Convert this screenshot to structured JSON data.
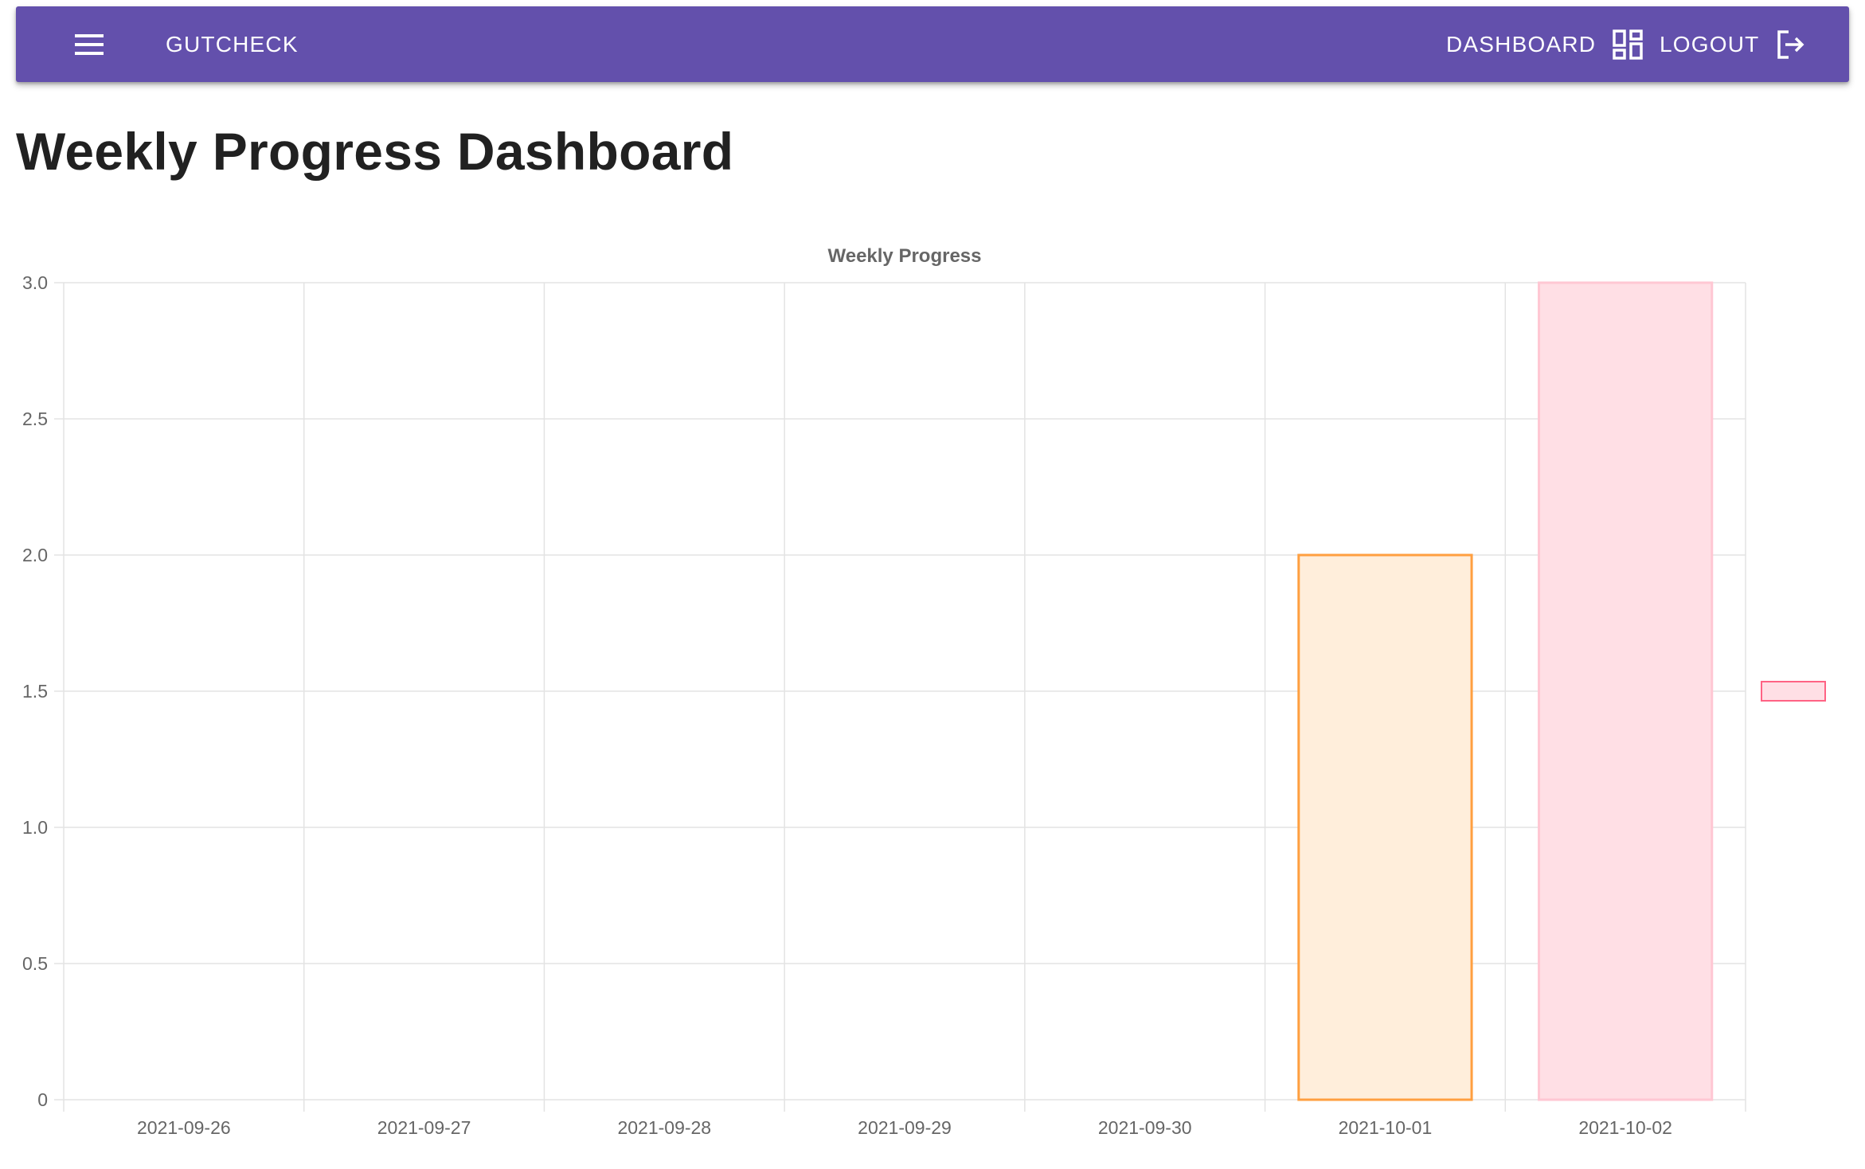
{
  "app": {
    "brand": "GUTCHECK",
    "nav": {
      "dashboard_label": "DASHBOARD",
      "logout_label": "LOGOUT"
    },
    "icons": {
      "menu": "menu-icon",
      "dashboard": "dashboard-icon",
      "logout": "logout-icon"
    },
    "colors": {
      "app_bar": "#6350ac"
    }
  },
  "page": {
    "title": "Weekly Progress Dashboard"
  },
  "chart_data": {
    "type": "bar",
    "title": "Weekly Progress",
    "categories": [
      "2021-09-26",
      "2021-09-27",
      "2021-09-28",
      "2021-09-29",
      "2021-09-30",
      "2021-10-01",
      "2021-10-02"
    ],
    "values": [
      0,
      0,
      0,
      0,
      0,
      2,
      3
    ],
    "bar_fill_colors": [
      "#ffeedb",
      "#ffeedb",
      "#ffeedb",
      "#ffeedb",
      "#ffeedb",
      "#ffeedb",
      "#ffdfe5"
    ],
    "bar_border_colors": [
      "#ff9f40",
      "#ff9f40",
      "#ff9f40",
      "#ff9f40",
      "#ff9f40",
      "#ff9f40",
      "#ffc7d3"
    ],
    "legend_swatch": {
      "fill": "#ffdfe5",
      "border": "#ff6384"
    },
    "ylim": [
      0,
      3
    ],
    "yticks": [
      "0",
      "0.5",
      "1.0",
      "1.5",
      "2.0",
      "2.5",
      "3.0"
    ],
    "grid": true,
    "legend_position": "right",
    "xlabel": "",
    "ylabel": ""
  }
}
